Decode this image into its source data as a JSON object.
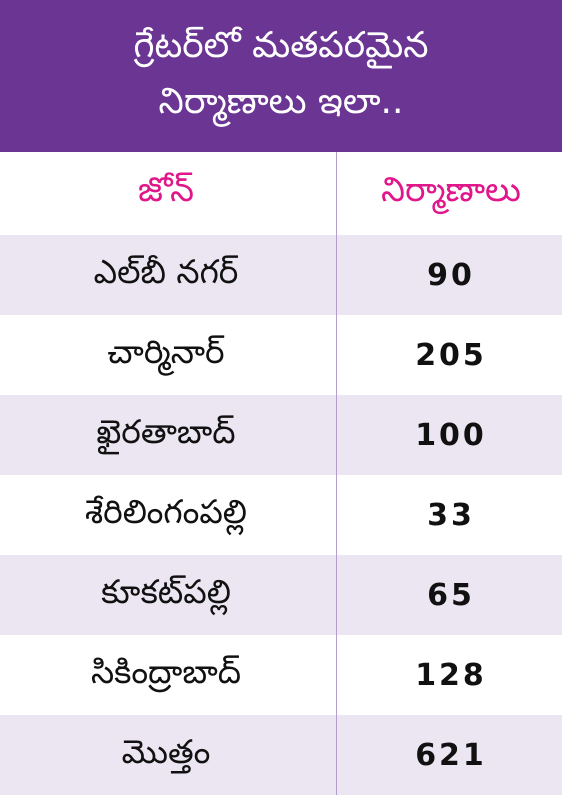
{
  "title": {
    "line1": "గ్రేటర్‌లో మతపరమైన",
    "line2": "నిర్మాణాలు ఇలా.."
  },
  "table": {
    "columns": [
      "జోన్",
      "నిర్మాణాలు"
    ],
    "rows": [
      {
        "zone": "ఎల్‌బీ నగర్",
        "count": "90"
      },
      {
        "zone": "చార్మినార్",
        "count": "205"
      },
      {
        "zone": "ఖైరతాబాద్",
        "count": "100"
      },
      {
        "zone": "శేరిలింగంపల్లి",
        "count": "33"
      },
      {
        "zone": "కూకట్‌పల్లి",
        "count": "65"
      },
      {
        "zone": "సికింద్రాబాద్",
        "count": "128"
      },
      {
        "zone": "మొత్తం",
        "count": "621"
      }
    ]
  },
  "colors": {
    "header_bg": "#6b3593",
    "accent": "#e0168a",
    "row_shade": "#ebe6f2"
  }
}
